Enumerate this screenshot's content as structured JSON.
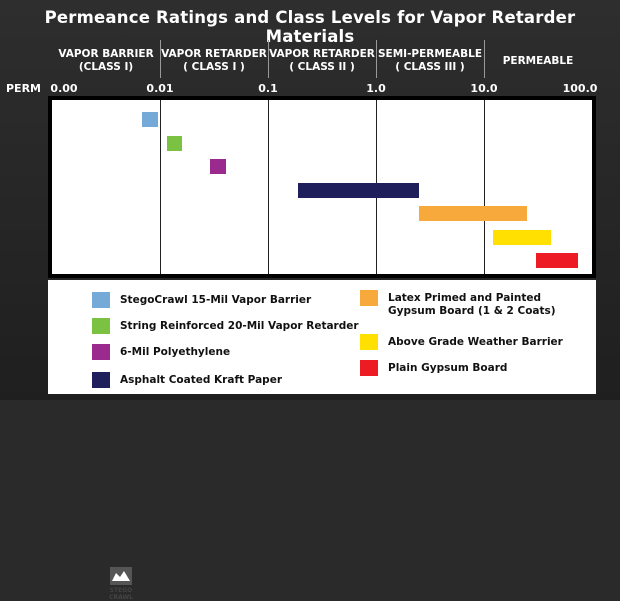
{
  "title": "Permeance Ratings and Class Levels for Vapor Retarder Materials",
  "axis_label": "PERM",
  "chart_data": {
    "type": "bar",
    "orientation": "horizontal-range",
    "x_scale": "log",
    "x_ticks": [
      "0.00",
      "0.01",
      "0.1",
      "1.0",
      "10.0",
      "100.0"
    ],
    "xlim": [
      0.001,
      100
    ],
    "classes": [
      {
        "line1": "VAPOR BARRIER",
        "line2": "(CLASS I)",
        "from": 0.001,
        "to": 0.01
      },
      {
        "line1": "VAPOR RETARDER",
        "line2": "( CLASS I )",
        "from": 0.01,
        "to": 0.1
      },
      {
        "line1": "VAPOR RETARDER",
        "line2": "( CLASS II )",
        "from": 0.1,
        "to": 1.0
      },
      {
        "line1": "SEMI-PERMEABLE",
        "line2": "( CLASS III )",
        "from": 1.0,
        "to": 10.0
      },
      {
        "line1": "PERMEABLE",
        "line2": "",
        "from": 10.0,
        "to": 100.0
      }
    ],
    "series": [
      {
        "name": "StegoCrawl 15-Mil Vapor Barrier",
        "from": 0.0068,
        "to": 0.0095,
        "color": "#74a9d8"
      },
      {
        "name": "String Reinforced 20-Mil Vapor Retarder",
        "from": 0.0115,
        "to": 0.016,
        "color": "#7cc242"
      },
      {
        "name": "6-Mil Polyethylene",
        "from": 0.029,
        "to": 0.041,
        "color": "#9b2a8f"
      },
      {
        "name": "Asphalt Coated Kraft Paper",
        "from": 0.19,
        "to": 2.5,
        "color": "#1f1f5c"
      },
      {
        "name": "Latex Primed and Painted Gypsum Board (1 & 2 Coats)",
        "from": 2.5,
        "to": 25,
        "color": "#f7a93b"
      },
      {
        "name": "Above Grade Weather Barrier",
        "from": 12,
        "to": 42,
        "color": "#ffe000"
      },
      {
        "name": "Plain Gypsum Board",
        "from": 30,
        "to": 75,
        "color": "#ed1c24"
      }
    ],
    "legend_columns": [
      [
        0,
        1,
        2,
        3
      ],
      [
        4,
        5,
        6
      ]
    ]
  }
}
